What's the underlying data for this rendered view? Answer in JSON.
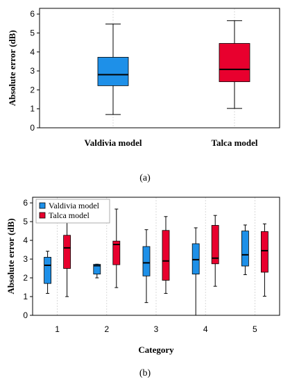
{
  "colors": {
    "valdivia": "#1e90e8",
    "talca": "#e8002e"
  },
  "chart_data": [
    {
      "type": "box",
      "panel_label": "(a)",
      "ylabel": "Absolute error (dB)",
      "xlabel": "",
      "ylim": [
        0,
        6.3
      ],
      "yticks": [
        "0",
        "1",
        "2",
        "3",
        "4",
        "5",
        "6"
      ],
      "grid": "vertical-dashed",
      "categories": [
        "Valdivia model",
        "Talca model"
      ],
      "series": [
        {
          "key": "valdivia",
          "min": 0.7,
          "q1": 2.22,
          "median": 2.8,
          "q3": 3.72,
          "max": 5.47
        },
        {
          "key": "talca",
          "min": 1.02,
          "q1": 2.43,
          "median": 3.08,
          "q3": 4.45,
          "max": 5.65
        }
      ]
    },
    {
      "type": "box",
      "panel_label": "(b)",
      "ylabel": "Absolute error (dB)",
      "xlabel": "Category",
      "ylim": [
        0,
        6.3
      ],
      "yticks": [
        "0",
        "1",
        "2",
        "3",
        "4",
        "5",
        "6"
      ],
      "grid": "vertical-dashed",
      "legend": {
        "position": "top-left",
        "entries": [
          "Valdivia model",
          "Talca model"
        ]
      },
      "categories": [
        "1",
        "2",
        "3",
        "4",
        "5"
      ],
      "series": [
        {
          "key": "valdivia",
          "name": "Valdivia model",
          "boxes": [
            {
              "min": 1.17,
              "q1": 1.7,
              "median": 2.67,
              "q3": 3.1,
              "max": 3.42
            },
            {
              "min": 2.0,
              "q1": 2.2,
              "median": 2.65,
              "q3": 2.72,
              "max": 2.73
            },
            {
              "min": 0.68,
              "q1": 2.1,
              "median": 2.8,
              "q3": 3.67,
              "max": 4.57
            },
            {
              "min": 0.0,
              "q1": 2.2,
              "median": 2.97,
              "q3": 3.82,
              "max": 4.67
            },
            {
              "min": 2.17,
              "q1": 2.63,
              "median": 3.23,
              "q3": 4.5,
              "max": 4.82
            }
          ]
        },
        {
          "key": "talca",
          "name": "Talca model",
          "boxes": [
            {
              "min": 1.0,
              "q1": 2.5,
              "median": 3.6,
              "q3": 4.27,
              "max": 5.02
            },
            {
              "min": 1.48,
              "q1": 2.7,
              "median": 3.78,
              "q3": 3.96,
              "max": 5.67
            },
            {
              "min": 1.17,
              "q1": 1.87,
              "median": 2.9,
              "q3": 4.53,
              "max": 5.27
            },
            {
              "min": 1.55,
              "q1": 2.75,
              "median": 3.05,
              "q3": 4.8,
              "max": 5.33
            },
            {
              "min": 1.02,
              "q1": 2.3,
              "median": 3.45,
              "q3": 4.47,
              "max": 4.88
            }
          ]
        }
      ]
    }
  ]
}
